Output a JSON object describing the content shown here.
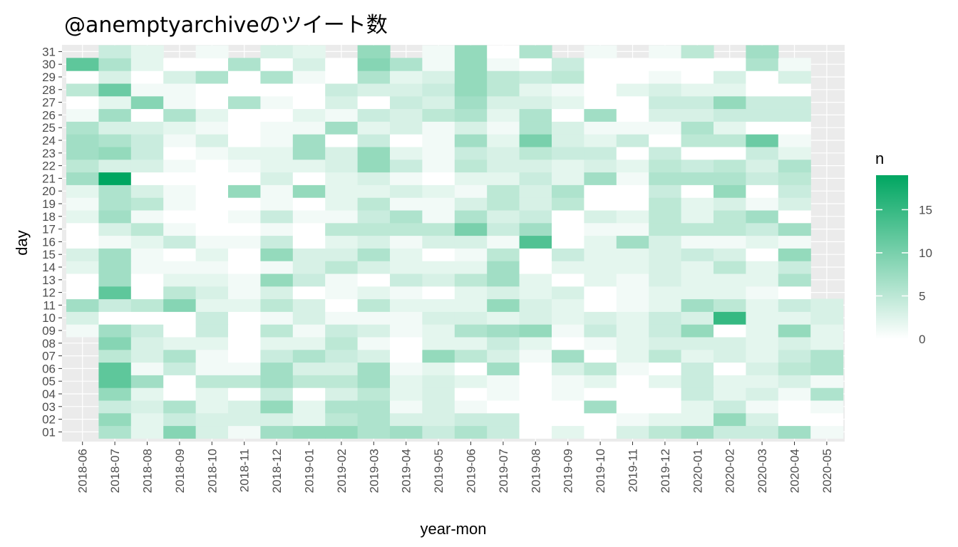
{
  "colors": {
    "low": "#ffffff",
    "high": "#00a661",
    "panel": "#ebebeb",
    "grid": "#ffffff"
  },
  "chart_data": {
    "type": "heatmap",
    "title": "@anemptyarchiveのツイート数",
    "xlabel": "year-mon",
    "ylabel": "day",
    "legend_title": "n",
    "legend_placement": "right",
    "legend_breaks": [
      0,
      5,
      10,
      15
    ],
    "value_range": [
      0,
      19
    ],
    "grid": true,
    "x": [
      "2018-06",
      "2018-07",
      "2018-08",
      "2018-09",
      "2018-10",
      "2018-11",
      "2018-12",
      "2019-01",
      "2019-02",
      "2019-03",
      "2019-04",
      "2019-05",
      "2019-06",
      "2019-07",
      "2019-08",
      "2019-09",
      "2019-10",
      "2019-11",
      "2019-12",
      "2020-01",
      "2020-02",
      "2020-03",
      "2020-04",
      "2020-05"
    ],
    "y": [
      "01",
      "02",
      "03",
      "04",
      "05",
      "06",
      "07",
      "08",
      "09",
      "10",
      "11",
      "12",
      "13",
      "14",
      "15",
      "16",
      "17",
      "18",
      "19",
      "20",
      "21",
      "22",
      "23",
      "24",
      "25",
      "26",
      "27",
      "28",
      "29",
      "30",
      "31"
    ],
    "values": [
      [
        null,
        6,
        2,
        9,
        3,
        1,
        7,
        8,
        8,
        6,
        7,
        4,
        6,
        4,
        0,
        2,
        0,
        3,
        5,
        7,
        4,
        4,
        7,
        1
      ],
      [
        null,
        8,
        2,
        4,
        3,
        3,
        3,
        2,
        5,
        6,
        3,
        3,
        4,
        4,
        0,
        0,
        0,
        1,
        2,
        2,
        8,
        3,
        0,
        0
      ],
      [
        null,
        4,
        3,
        6,
        2,
        3,
        8,
        2,
        6,
        6,
        1,
        3,
        1,
        0,
        0,
        0,
        7,
        0,
        0,
        2,
        4,
        1,
        0,
        1
      ],
      [
        null,
        8,
        2,
        0,
        2,
        0,
        4,
        0,
        3,
        5,
        2,
        3,
        0,
        1,
        0,
        1,
        0,
        0,
        0,
        4,
        2,
        3,
        1,
        6
      ],
      [
        null,
        12,
        7,
        0,
        5,
        5,
        7,
        5,
        5,
        7,
        2,
        3,
        2,
        1,
        0,
        1,
        2,
        0,
        2,
        4,
        2,
        2,
        3,
        1
      ],
      [
        null,
        12,
        1,
        4,
        1,
        1,
        7,
        3,
        3,
        7,
        1,
        2,
        0,
        7,
        0,
        3,
        5,
        1,
        0,
        4,
        0,
        3,
        5,
        6
      ],
      [
        null,
        5,
        3,
        6,
        1,
        0,
        4,
        6,
        4,
        3,
        0,
        8,
        5,
        3,
        1,
        7,
        0,
        2,
        5,
        2,
        3,
        2,
        4,
        6
      ],
      [
        null,
        9,
        3,
        2,
        2,
        0,
        2,
        2,
        5,
        1,
        0,
        2,
        2,
        4,
        2,
        0,
        1,
        2,
        3,
        3,
        3,
        2,
        3,
        2
      ],
      [
        1,
        7,
        4,
        0,
        4,
        0,
        5,
        1,
        4,
        3,
        1,
        2,
        6,
        7,
        8,
        1,
        4,
        2,
        4,
        8,
        0,
        2,
        8,
        2
      ],
      [
        3,
        0,
        0,
        0,
        4,
        0,
        1,
        3,
        1,
        1,
        1,
        3,
        3,
        2,
        3,
        2,
        3,
        2,
        4,
        3,
        15,
        2,
        2,
        3
      ],
      [
        7,
        4,
        5,
        9,
        2,
        2,
        5,
        3,
        0,
        5,
        2,
        2,
        2,
        8,
        3,
        2,
        0,
        1,
        2,
        7,
        5,
        2,
        4,
        3
      ],
      [
        0,
        12,
        0,
        5,
        3,
        1,
        3,
        0,
        1,
        2,
        1,
        0,
        2,
        3,
        2,
        3,
        0,
        1,
        2,
        2,
        2,
        1,
        0,
        null
      ],
      [
        0,
        7,
        0,
        2,
        2,
        1,
        8,
        4,
        1,
        0,
        4,
        3,
        5,
        7,
        2,
        0,
        2,
        1,
        3,
        2,
        2,
        2,
        6,
        null
      ],
      [
        2,
        7,
        1,
        1,
        1,
        0,
        1,
        3,
        5,
        3,
        2,
        2,
        2,
        7,
        0,
        2,
        2,
        2,
        3,
        2,
        5,
        2,
        4,
        null
      ],
      [
        3,
        7,
        1,
        0,
        2,
        0,
        8,
        3,
        3,
        6,
        2,
        0,
        1,
        5,
        0,
        4,
        2,
        2,
        3,
        4,
        3,
        0,
        8,
        null
      ],
      [
        0,
        1,
        2,
        4,
        1,
        1,
        4,
        0,
        2,
        3,
        1,
        3,
        3,
        1,
        13,
        0,
        2,
        7,
        3,
        1,
        1,
        2,
        1,
        null
      ],
      [
        0,
        3,
        5,
        1,
        0,
        0,
        1,
        0,
        5,
        5,
        5,
        5,
        10,
        4,
        7,
        0,
        1,
        1,
        5,
        5,
        5,
        4,
        7,
        null
      ],
      [
        2,
        7,
        1,
        0,
        0,
        1,
        4,
        1,
        1,
        4,
        6,
        1,
        6,
        3,
        4,
        0,
        3,
        2,
        5,
        2,
        5,
        7,
        0,
        null
      ],
      [
        1,
        6,
        5,
        1,
        0,
        0,
        1,
        0,
        2,
        5,
        1,
        1,
        3,
        5,
        3,
        5,
        0,
        0,
        5,
        2,
        3,
        1,
        3,
        null
      ],
      [
        2,
        6,
        3,
        1,
        0,
        8,
        1,
        8,
        2,
        2,
        3,
        2,
        1,
        5,
        3,
        6,
        0,
        0,
        4,
        0,
        8,
        0,
        4,
        null
      ],
      [
        7,
        19,
        0,
        0,
        0,
        0,
        3,
        0,
        2,
        3,
        1,
        0,
        2,
        2,
        4,
        2,
        7,
        1,
        6,
        6,
        6,
        4,
        5,
        null
      ],
      [
        5,
        3,
        3,
        1,
        0,
        1,
        2,
        2,
        3,
        8,
        4,
        1,
        5,
        3,
        3,
        2,
        3,
        2,
        5,
        4,
        5,
        3,
        6,
        null
      ],
      [
        7,
        8,
        4,
        0,
        1,
        2,
        2,
        7,
        3,
        8,
        2,
        1,
        4,
        3,
        5,
        4,
        4,
        0,
        4,
        0,
        0,
        4,
        2,
        null
      ],
      [
        7,
        6,
        4,
        1,
        3,
        0,
        1,
        7,
        0,
        4,
        0,
        1,
        7,
        2,
        10,
        3,
        2,
        4,
        0,
        5,
        5,
        11,
        1,
        null
      ],
      [
        6,
        3,
        3,
        2,
        1,
        0,
        1,
        1,
        7,
        2,
        3,
        1,
        3,
        1,
        6,
        3,
        1,
        1,
        1,
        6,
        2,
        0,
        0,
        null
      ],
      [
        1,
        7,
        0,
        6,
        2,
        0,
        0,
        2,
        1,
        4,
        3,
        5,
        6,
        2,
        6,
        0,
        7,
        0,
        3,
        3,
        4,
        4,
        4,
        null
      ],
      [
        0,
        2,
        9,
        1,
        0,
        6,
        1,
        0,
        3,
        0,
        4,
        3,
        7,
        3,
        3,
        2,
        0,
        0,
        4,
        4,
        8,
        4,
        4,
        null
      ],
      [
        5,
        11,
        1,
        1,
        0,
        0,
        0,
        0,
        4,
        3,
        3,
        4,
        8,
        5,
        2,
        1,
        0,
        2,
        3,
        2,
        2,
        0,
        0,
        null
      ],
      [
        0,
        3,
        0,
        3,
        6,
        0,
        6,
        1,
        0,
        6,
        2,
        3,
        8,
        5,
        4,
        5,
        0,
        0,
        1,
        0,
        3,
        0,
        3,
        null
      ],
      [
        12,
        6,
        2,
        0,
        0,
        6,
        0,
        3,
        0,
        9,
        6,
        1,
        8,
        1,
        0,
        4,
        0,
        0,
        0,
        0,
        0,
        6,
        1,
        null
      ],
      [
        null,
        4,
        2,
        null,
        1,
        null,
        3,
        2,
        null,
        8,
        null,
        1,
        8,
        0,
        6,
        null,
        1,
        null,
        1,
        5,
        null,
        7,
        null,
        null
      ]
    ]
  }
}
